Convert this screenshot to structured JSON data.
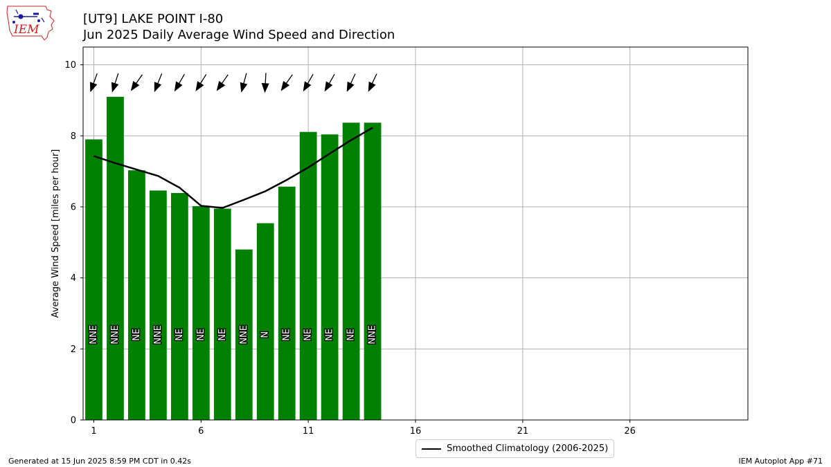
{
  "header": {
    "logo_text": "IEM",
    "title": "[UT9] LAKE POINT I-80",
    "subtitle": "Jun 2025 Daily Average Wind Speed and Direction"
  },
  "footer": {
    "left": "Generated at 15 Jun 2025 8:59 PM CDT in 0.42s",
    "right": "IEM Autoplot App #71"
  },
  "colors": {
    "bar": "#008000",
    "climatology_line": "#000000",
    "grid": "#b0b0b0",
    "logo_red": "#cc2222",
    "logo_blue": "#1a1aa0"
  },
  "chart_data": {
    "type": "bar",
    "ylabel": "Average Wind Speed [miles per hour]",
    "xlabel": "",
    "xlim": [
      0.5,
      31.5
    ],
    "ylim": [
      0,
      10.5
    ],
    "xticks": [
      1,
      6,
      11,
      16,
      21,
      26
    ],
    "yticks": [
      0,
      2,
      4,
      6,
      8,
      10
    ],
    "grid": true,
    "legend_position": "below-center",
    "days": [
      1,
      2,
      3,
      4,
      5,
      6,
      7,
      8,
      9,
      10,
      11,
      12,
      13,
      14
    ],
    "series": [
      {
        "name": "Daily Average Wind Speed",
        "values": [
          7.9,
          9.1,
          7.03,
          6.46,
          6.39,
          6.02,
          5.95,
          4.8,
          5.54,
          6.57,
          8.11,
          8.04,
          8.37,
          8.37
        ]
      },
      {
        "name": "Smoothed Climatology (2006-2025)",
        "values": [
          7.43,
          7.23,
          7.05,
          6.87,
          6.54,
          6.03,
          5.97,
          6.2,
          6.44,
          6.76,
          7.11,
          7.5,
          7.88,
          8.23
        ]
      }
    ],
    "directions": [
      "NNE",
      "NNE",
      "NE",
      "NNE",
      "NE",
      "NE",
      "NE",
      "NNE",
      "N",
      "NE",
      "NE",
      "NE",
      "NE",
      "NNE"
    ],
    "direction_degrees": [
      20,
      18,
      35,
      22,
      30,
      32,
      35,
      15,
      3,
      35,
      30,
      30,
      25,
      25
    ]
  }
}
